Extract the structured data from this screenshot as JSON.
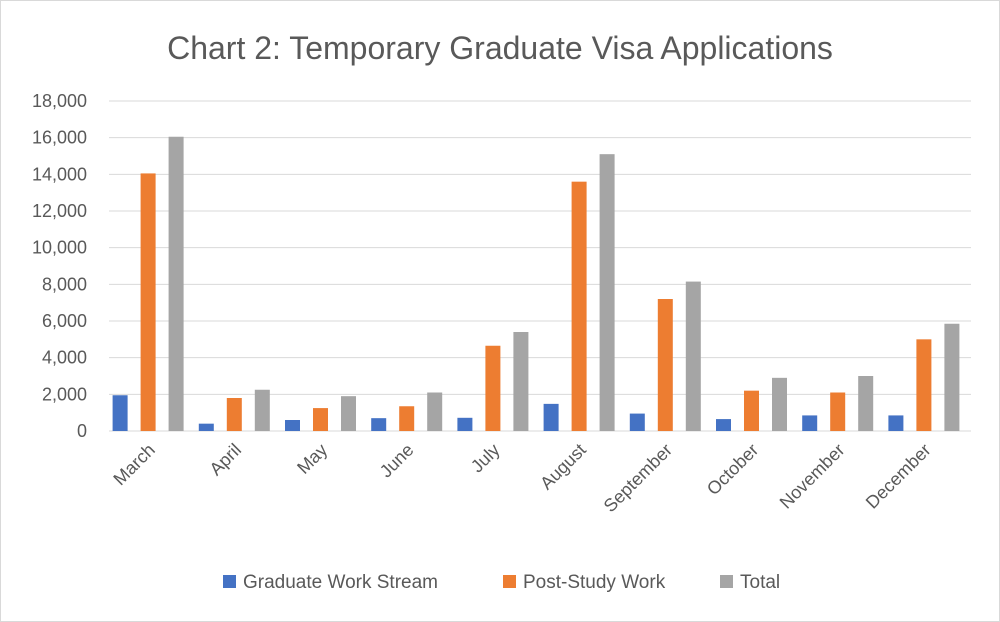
{
  "chart_data": {
    "type": "bar",
    "title": "Chart 2: Temporary Graduate Visa Applications",
    "categories": [
      "March",
      "April",
      "May",
      "June",
      "July",
      "August",
      "September",
      "October",
      "November",
      "December"
    ],
    "series": [
      {
        "name": "Graduate Work Stream",
        "color": "#4472c4",
        "values": [
          1950,
          400,
          600,
          700,
          720,
          1480,
          950,
          650,
          850,
          850
        ]
      },
      {
        "name": "Post-Study Work",
        "color": "#ed7d31",
        "values": [
          14050,
          1800,
          1250,
          1350,
          4650,
          13600,
          7200,
          2200,
          2100,
          5000
        ]
      },
      {
        "name": "Total",
        "color": "#a5a5a5",
        "values": [
          16050,
          2250,
          1900,
          2100,
          5400,
          15100,
          8150,
          2900,
          3000,
          5850
        ]
      }
    ],
    "ylim": [
      0,
      18000
    ],
    "yticks": [
      "0",
      "2,000",
      "4,000",
      "6,000",
      "8,000",
      "10,000",
      "12,000",
      "14,000",
      "16,000",
      "18,000"
    ],
    "grid": true,
    "legend": "bottom"
  }
}
